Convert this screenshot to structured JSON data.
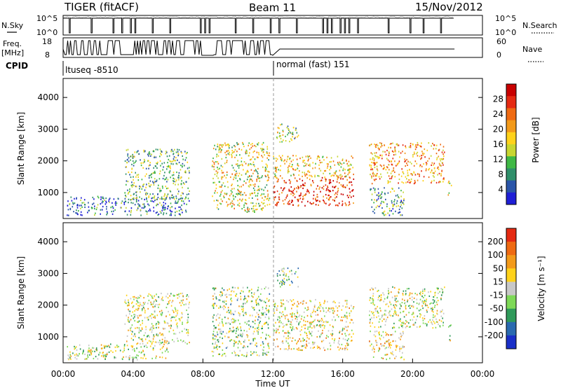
{
  "header": {
    "station": "TIGER (fitACF)",
    "beam": "Beam 11",
    "date": "15/Nov/2012"
  },
  "status_panel": {
    "nsky_label": "N.Sky",
    "nsearch_label": "N.Search",
    "nsky_ticks": [
      "10^5",
      "10^0"
    ],
    "nsearch_ticks": [
      "10^5",
      "10^0"
    ],
    "freq_label_1": "Freq.",
    "freq_label_2": "[MHz]",
    "freq_ticks": [
      "18",
      "8"
    ],
    "nave_label": "Nave",
    "nave_ticks": [
      "60",
      "0"
    ],
    "cpid_label": "CPID",
    "cpid_segments": [
      {
        "text": "ltuseq -8510"
      },
      {
        "text": "normal (fast) 151"
      }
    ]
  },
  "x_axis": {
    "label": "Time UT",
    "ticks": [
      "00:00",
      "04:00",
      "08:00",
      "12:00",
      "16:00",
      "20:00",
      "00:00"
    ],
    "range_hours": [
      0,
      24
    ]
  },
  "chart_data": [
    {
      "type": "heatmap",
      "title": "",
      "xlabel": "Time UT",
      "ylabel": "Slant Range [km]",
      "xlim": [
        0,
        24
      ],
      "ylim": [
        180,
        4600
      ],
      "yticks": [
        1000,
        2000,
        3000,
        4000
      ],
      "colorbar": {
        "label": "Power [dB]",
        "ticks": [
          "4",
          "8",
          "12",
          "16",
          "20",
          "24",
          "28"
        ],
        "colors": [
          "#1f1fd6",
          "#2a55a8",
          "#2f8f6a",
          "#3fb845",
          "#c8d630",
          "#ffd21a",
          "#f39a1a",
          "#ef6a12",
          "#e52a12",
          "#c80000"
        ]
      },
      "regions": [
        {
          "t": [
            0.2,
            7.2
          ],
          "r": [
            300,
            900
          ],
          "level": 0.2
        },
        {
          "t": [
            3.5,
            7.2
          ],
          "r": [
            800,
            2400
          ],
          "level": 0.35
        },
        {
          "t": [
            8.5,
            11.8
          ],
          "r": [
            400,
            2600
          ],
          "level": 0.5
        },
        {
          "t": [
            12.0,
            16.6
          ],
          "r": [
            600,
            1500
          ],
          "level": 0.85
        },
        {
          "t": [
            12.0,
            16.6
          ],
          "r": [
            1500,
            2200
          ],
          "level": 0.55
        },
        {
          "t": [
            12.2,
            13.5
          ],
          "r": [
            2600,
            3200
          ],
          "level": 0.4
        },
        {
          "t": [
            17.5,
            21.8
          ],
          "r": [
            1300,
            2600
          ],
          "level": 0.65
        },
        {
          "t": [
            17.5,
            19.5
          ],
          "r": [
            300,
            1200
          ],
          "level": 0.3
        },
        {
          "t": [
            22.0,
            22.2
          ],
          "r": [
            900,
            1400
          ],
          "level": 0.5
        }
      ]
    },
    {
      "type": "heatmap",
      "title": "",
      "xlabel": "Time UT",
      "ylabel": "Slant Range [km]",
      "xlim": [
        0,
        24
      ],
      "ylim": [
        180,
        4600
      ],
      "yticks": [
        1000,
        2000,
        3000,
        4000
      ],
      "colorbar": {
        "label": "Velocity [m s⁻¹]",
        "ticks": [
          "200",
          "100",
          "50",
          "15",
          "-15",
          "-50",
          "-100",
          "-200"
        ],
        "colors": [
          "#1a2fc8",
          "#2a6ab0",
          "#2f9a5a",
          "#7ed957",
          "#c8c8c8",
          "#ffd21a",
          "#f39a1a",
          "#ef6a12",
          "#e52a12"
        ]
      },
      "regions": [
        {
          "t": [
            0.2,
            6.0
          ],
          "r": [
            300,
            800
          ],
          "level": 0.5
        },
        {
          "t": [
            3.5,
            7.2
          ],
          "r": [
            800,
            2400
          ],
          "level": 0.5
        },
        {
          "t": [
            8.5,
            11.8
          ],
          "r": [
            400,
            2600
          ],
          "level": 0.45
        },
        {
          "t": [
            12.0,
            16.6
          ],
          "r": [
            600,
            2200
          ],
          "level": 0.55
        },
        {
          "t": [
            12.2,
            13.5
          ],
          "r": [
            2600,
            3200
          ],
          "level": 0.4
        },
        {
          "t": [
            17.5,
            21.8
          ],
          "r": [
            1300,
            2600
          ],
          "level": 0.5
        },
        {
          "t": [
            17.5,
            19.5
          ],
          "r": [
            300,
            1200
          ],
          "level": 0.6
        },
        {
          "t": [
            22.0,
            22.2
          ],
          "r": [
            900,
            1400
          ],
          "level": 0.5
        }
      ]
    }
  ]
}
